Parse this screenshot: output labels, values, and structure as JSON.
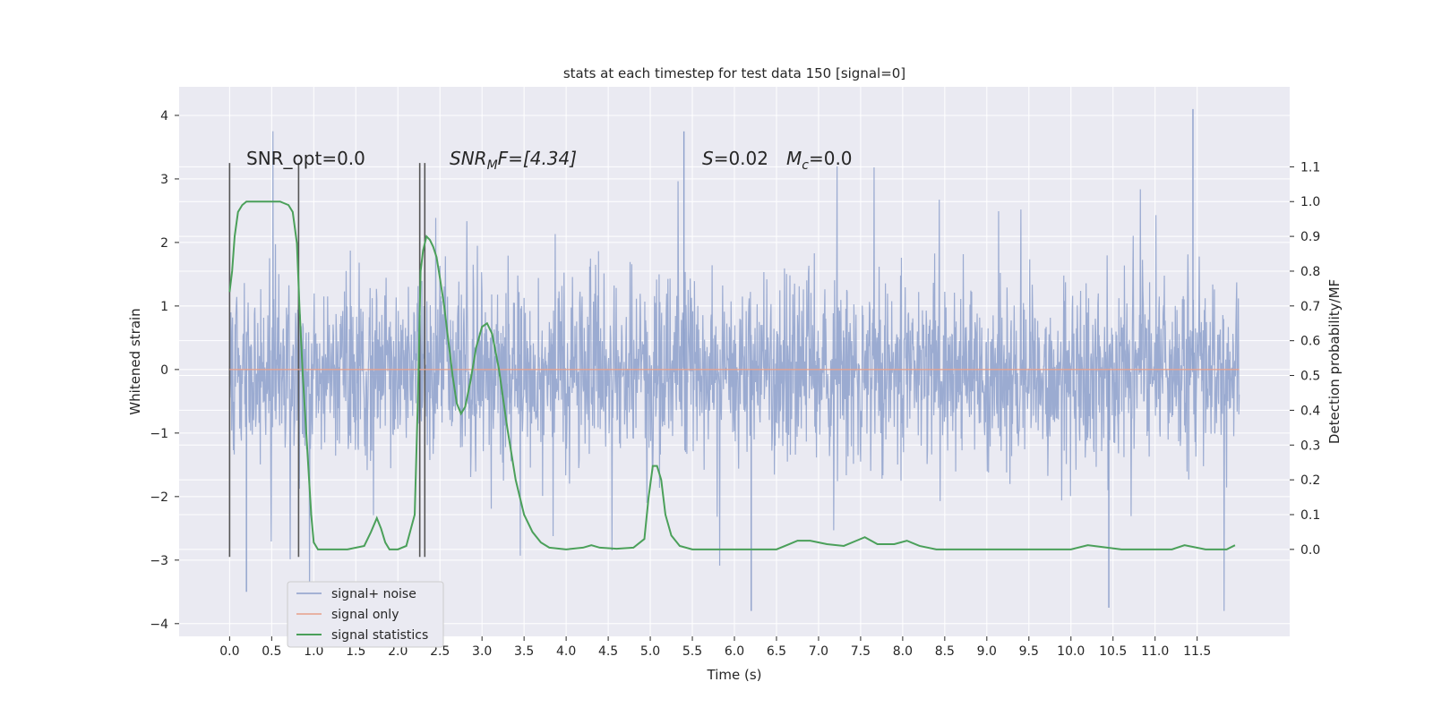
{
  "chart_data": {
    "type": "line",
    "title": "stats at each timestep for test data 150 [signal=0]",
    "xlabel": "Time (s)",
    "ylabel_left": "Whitened strain",
    "ylabel_right": "Detection probability/MF",
    "xlim": [
      -0.6,
      12.6
    ],
    "ylim_left": [
      -4.2,
      4.45
    ],
    "ylim_right": [
      -0.25,
      1.33
    ],
    "xticks": [
      "0.0",
      "0.5",
      "1.0",
      "1.5",
      "2.0",
      "2.5",
      "3.0",
      "3.5",
      "4.0",
      "4.5",
      "5.0",
      "5.5",
      "6.0",
      "6.5",
      "7.0",
      "7.5",
      "8.0",
      "8.5",
      "9.0",
      "9.5",
      "10.0",
      "10.5",
      "11.0",
      "11.5"
    ],
    "yticks_left": [
      "4",
      "3",
      "2",
      "1",
      "0",
      "−1",
      "−2",
      "−3",
      "−4"
    ],
    "yticks_right": [
      "1.1",
      "1.0",
      "0.9",
      "0.8",
      "0.7",
      "0.6",
      "0.5",
      "0.4",
      "0.3",
      "0.2",
      "0.1",
      "0.0"
    ],
    "grid": true,
    "legend_position": "lower-left",
    "legend": [
      {
        "label": "signal+ noise",
        "color": "#8da0cb"
      },
      {
        "label": "signal only",
        "color": "#e8a08a"
      },
      {
        "label": "signal statistics",
        "color": "#4ba05a"
      }
    ],
    "annotations": {
      "snr_opt": "SNR_opt=0.0",
      "snr_mf_prefix": "SNR",
      "snr_mf_sub": "M",
      "snr_mf_suffix": "F=[4.34]",
      "s_prefix": "S",
      "s_value": "=0.02",
      "mc_prefix": "M",
      "mc_sub": "c",
      "mc_value": "=0.0"
    },
    "noise_series": {
      "name": "signal+ noise",
      "t_start": 0.0,
      "t_end": 12.0,
      "typical_envelope": [
        -1.3,
        1.3
      ],
      "extreme_range": [
        -3.8,
        4.1
      ],
      "notable_peaks": [
        [
          5.4,
          3.75
        ],
        [
          11.45,
          4.1
        ],
        [
          6.2,
          -3.8
        ],
        [
          10.45,
          -3.75
        ],
        [
          0.2,
          -3.5
        ]
      ]
    },
    "signal_only": {
      "name": "signal only",
      "t_start": 0.0,
      "t_end": 12.0,
      "value": 0.0
    },
    "statistics_series": {
      "name": "signal statistics",
      "t": [
        0.0,
        0.03,
        0.06,
        0.1,
        0.15,
        0.2,
        0.3,
        0.45,
        0.6,
        0.7,
        0.75,
        0.8,
        0.83,
        0.87,
        0.92,
        0.97,
        1.0,
        1.05,
        1.2,
        1.4,
        1.6,
        1.68,
        1.75,
        1.8,
        1.85,
        1.9,
        2.0,
        2.1,
        2.2,
        2.24,
        2.27,
        2.3,
        2.34,
        2.38,
        2.42,
        2.46,
        2.5,
        2.55,
        2.6,
        2.65,
        2.7,
        2.75,
        2.8,
        2.86,
        2.93,
        3.0,
        3.06,
        3.12,
        3.2,
        3.3,
        3.4,
        3.5,
        3.6,
        3.7,
        3.8,
        4.0,
        4.2,
        4.3,
        4.4,
        4.6,
        4.8,
        4.93,
        4.98,
        5.03,
        5.08,
        5.13,
        5.18,
        5.25,
        5.35,
        5.5,
        5.8,
        6.2,
        6.5,
        6.65,
        6.75,
        6.9,
        7.1,
        7.3,
        7.45,
        7.55,
        7.7,
        7.9,
        8.05,
        8.2,
        8.4,
        8.7,
        9.0,
        9.5,
        9.8,
        10.0,
        10.2,
        10.6,
        11.0,
        11.2,
        11.35,
        11.6,
        11.85,
        11.95
      ],
      "values": [
        0.74,
        0.8,
        0.9,
        0.97,
        0.99,
        1.0,
        1.0,
        1.0,
        1.0,
        0.99,
        0.97,
        0.88,
        0.7,
        0.5,
        0.3,
        0.1,
        0.02,
        0.0,
        0.0,
        0.0,
        0.01,
        0.05,
        0.09,
        0.06,
        0.02,
        0.0,
        0.0,
        0.01,
        0.1,
        0.45,
        0.8,
        0.86,
        0.9,
        0.89,
        0.87,
        0.84,
        0.78,
        0.7,
        0.6,
        0.5,
        0.42,
        0.39,
        0.41,
        0.48,
        0.58,
        0.64,
        0.65,
        0.62,
        0.52,
        0.35,
        0.2,
        0.1,
        0.05,
        0.02,
        0.005,
        0.0,
        0.005,
        0.012,
        0.005,
        0.002,
        0.005,
        0.03,
        0.15,
        0.24,
        0.24,
        0.2,
        0.1,
        0.04,
        0.01,
        0.0,
        0.0,
        0.0,
        0.0,
        0.015,
        0.025,
        0.025,
        0.015,
        0.01,
        0.025,
        0.035,
        0.015,
        0.015,
        0.025,
        0.01,
        0.0,
        0.0,
        0.0,
        0.0,
        0.0,
        0.0,
        0.012,
        0.0,
        0.0,
        0.0,
        0.012,
        0.0,
        0.0,
        0.012
      ]
    },
    "vertical_lines": {
      "color": "#555555",
      "segments": [
        {
          "t": 0.0,
          "y_low": -2.95,
          "y_high": 3.25
        },
        {
          "t": 0.82,
          "y_low": -2.95,
          "y_high": 3.25
        },
        {
          "t": 2.26,
          "y_low": -2.95,
          "y_high": 3.25
        },
        {
          "t": 2.32,
          "y_low": -2.95,
          "y_high": 3.25
        }
      ]
    }
  }
}
